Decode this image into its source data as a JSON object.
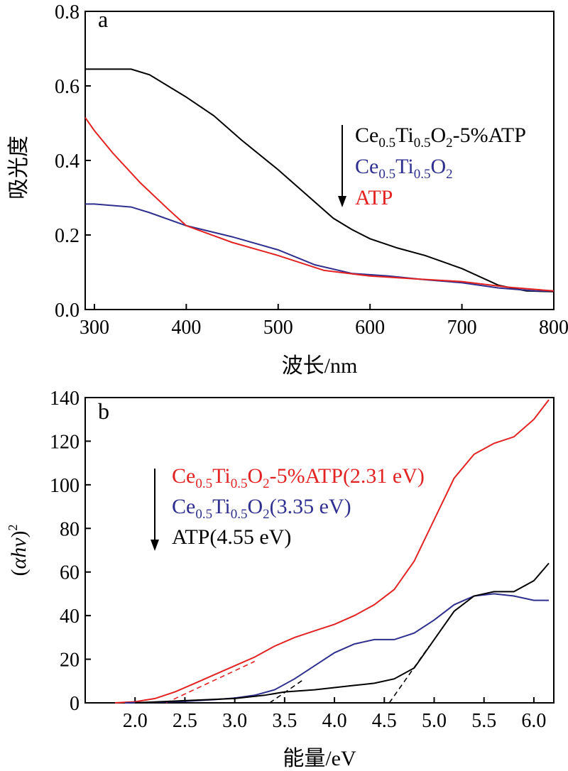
{
  "colors": {
    "black": "#000000",
    "blue": "#2f2f8f",
    "red": "#e32222"
  },
  "chart_data": [
    {
      "type": "line",
      "panel_label": "a",
      "xlabel": "波长/nm",
      "ylabel": "吸光度",
      "xlim": [
        290,
        800
      ],
      "ylim": [
        0.0,
        0.8
      ],
      "xticks": [
        "300",
        "400",
        "500",
        "600",
        "700",
        "800"
      ],
      "yticks": [
        "0.0",
        "0.2",
        "0.4",
        "0.6",
        "0.8"
      ],
      "legend": {
        "placement": "right-middle",
        "arrow": "down"
      },
      "series": [
        {
          "name": "Ce0.5Ti0.5O2-5%ATP",
          "name_parts": {
            "base": "Ce",
            "s1": "0.5",
            "t": "Ti",
            "s2": "0.5",
            "o": "O",
            "s3": "2",
            "tail": "-5%ATP"
          },
          "color": "#000000",
          "x": [
            290,
            300,
            340,
            360,
            400,
            430,
            460,
            500,
            530,
            560,
            580,
            600,
            630,
            660,
            700,
            740,
            770,
            800
          ],
          "y": [
            0.645,
            0.645,
            0.645,
            0.63,
            0.57,
            0.52,
            0.455,
            0.375,
            0.31,
            0.245,
            0.215,
            0.19,
            0.165,
            0.145,
            0.11,
            0.065,
            0.05,
            0.048
          ]
        },
        {
          "name": "Ce0.5Ti0.5O2",
          "name_parts": {
            "base": "Ce",
            "s1": "0.5",
            "t": "Ti",
            "s2": "0.5",
            "o": "O",
            "s3": "2",
            "tail": ""
          },
          "color": "#2f2f8f",
          "x": [
            290,
            300,
            340,
            360,
            400,
            450,
            500,
            540,
            580,
            620,
            660,
            700,
            740,
            780,
            800
          ],
          "y": [
            0.283,
            0.283,
            0.275,
            0.26,
            0.225,
            0.195,
            0.16,
            0.12,
            0.097,
            0.09,
            0.08,
            0.072,
            0.058,
            0.05,
            0.05
          ]
        },
        {
          "name": "ATP",
          "name_parts": {
            "base": "ATP",
            "s1": "",
            "t": "",
            "s2": "",
            "o": "",
            "s3": "",
            "tail": ""
          },
          "color": "#e32222",
          "x": [
            290,
            300,
            320,
            350,
            380,
            400,
            450,
            500,
            550,
            600,
            650,
            700,
            750,
            800
          ],
          "y": [
            0.515,
            0.48,
            0.42,
            0.34,
            0.27,
            0.225,
            0.18,
            0.145,
            0.105,
            0.09,
            0.082,
            0.075,
            0.06,
            0.05
          ]
        }
      ]
    },
    {
      "type": "line",
      "panel_label": "b",
      "xlabel": "能量/eV",
      "ylabel": "(αhν)²",
      "ylabel_parts": {
        "open": "(",
        "body": "αhv",
        "close": ")",
        "sup": "2"
      },
      "xlim": [
        1.5,
        6.2
      ],
      "ylim": [
        0,
        140
      ],
      "xticks": [
        "2.0",
        "2.5",
        "3.0",
        "3.5",
        "4.0",
        "4.5",
        "5.0",
        "5.5",
        "6.0"
      ],
      "yticks": [
        "0",
        "20",
        "40",
        "60",
        "80",
        "100",
        "120",
        "140"
      ],
      "legend": {
        "placement": "top-left",
        "arrow": "down"
      },
      "series": [
        {
          "name": "Ce0.5Ti0.5O2-5%ATP(2.31 eV)",
          "name_parts": {
            "base": "Ce",
            "s1": "0.5",
            "t": "Ti",
            "s2": "0.5",
            "o": "O",
            "s3": "2",
            "tail": "-5%ATP(2.31 eV)"
          },
          "color": "#e32222",
          "band_gap_eV": 2.31,
          "x": [
            1.8,
            2.0,
            2.2,
            2.4,
            2.6,
            2.8,
            3.0,
            3.2,
            3.4,
            3.6,
            3.8,
            4.0,
            4.2,
            4.4,
            4.6,
            4.8,
            5.0,
            5.2,
            5.4,
            5.6,
            5.8,
            6.0,
            6.15
          ],
          "y": [
            0,
            0.5,
            2,
            5,
            9,
            13,
            17,
            21,
            26,
            30,
            33,
            36,
            40,
            45,
            52,
            65,
            84,
            103,
            114,
            119,
            122,
            130,
            139
          ],
          "tangent": {
            "x": [
              2.31,
              3.2
            ],
            "y": [
              0,
              19
            ]
          }
        },
        {
          "name": "Ce0.5Ti0.5O2(3.35 eV)",
          "name_parts": {
            "base": "Ce",
            "s1": "0.5",
            "t": "Ti",
            "s2": "0.5",
            "o": "O",
            "s3": "2",
            "tail": "(3.35 eV)"
          },
          "color": "#2f2f8f",
          "band_gap_eV": 3.35,
          "x": [
            1.9,
            2.2,
            2.5,
            2.8,
            3.0,
            3.2,
            3.4,
            3.6,
            3.8,
            4.0,
            4.2,
            4.4,
            4.6,
            4.8,
            5.0,
            5.2,
            5.4,
            5.6,
            5.8,
            6.0,
            6.15
          ],
          "y": [
            0,
            0.3,
            0.7,
            1.5,
            2.2,
            3.5,
            6,
            11,
            17,
            23,
            27,
            29,
            29,
            32,
            38,
            45,
            49,
            50,
            49,
            47,
            47
          ],
          "tangent": {
            "x": [
              3.35,
              3.7
            ],
            "y": [
              0,
              11
            ]
          }
        },
        {
          "name": "ATP(4.55 eV)",
          "name_parts": {
            "base": "ATP(4.55 eV)",
            "s1": "",
            "t": "",
            "s2": "",
            "o": "",
            "s3": "",
            "tail": ""
          },
          "color": "#000000",
          "band_gap_eV": 4.55,
          "x": [
            2.0,
            2.5,
            3.0,
            3.3,
            3.5,
            3.8,
            4.0,
            4.2,
            4.4,
            4.6,
            4.8,
            5.0,
            5.2,
            5.4,
            5.6,
            5.8,
            6.0,
            6.15
          ],
          "y": [
            0,
            1,
            2,
            3.5,
            5,
            6,
            7,
            8,
            9,
            11,
            16,
            29,
            42,
            49,
            51,
            51,
            56,
            64
          ],
          "tangent": {
            "x": [
              4.55,
              4.95
            ],
            "y": [
              0,
              26
            ]
          }
        }
      ]
    }
  ]
}
